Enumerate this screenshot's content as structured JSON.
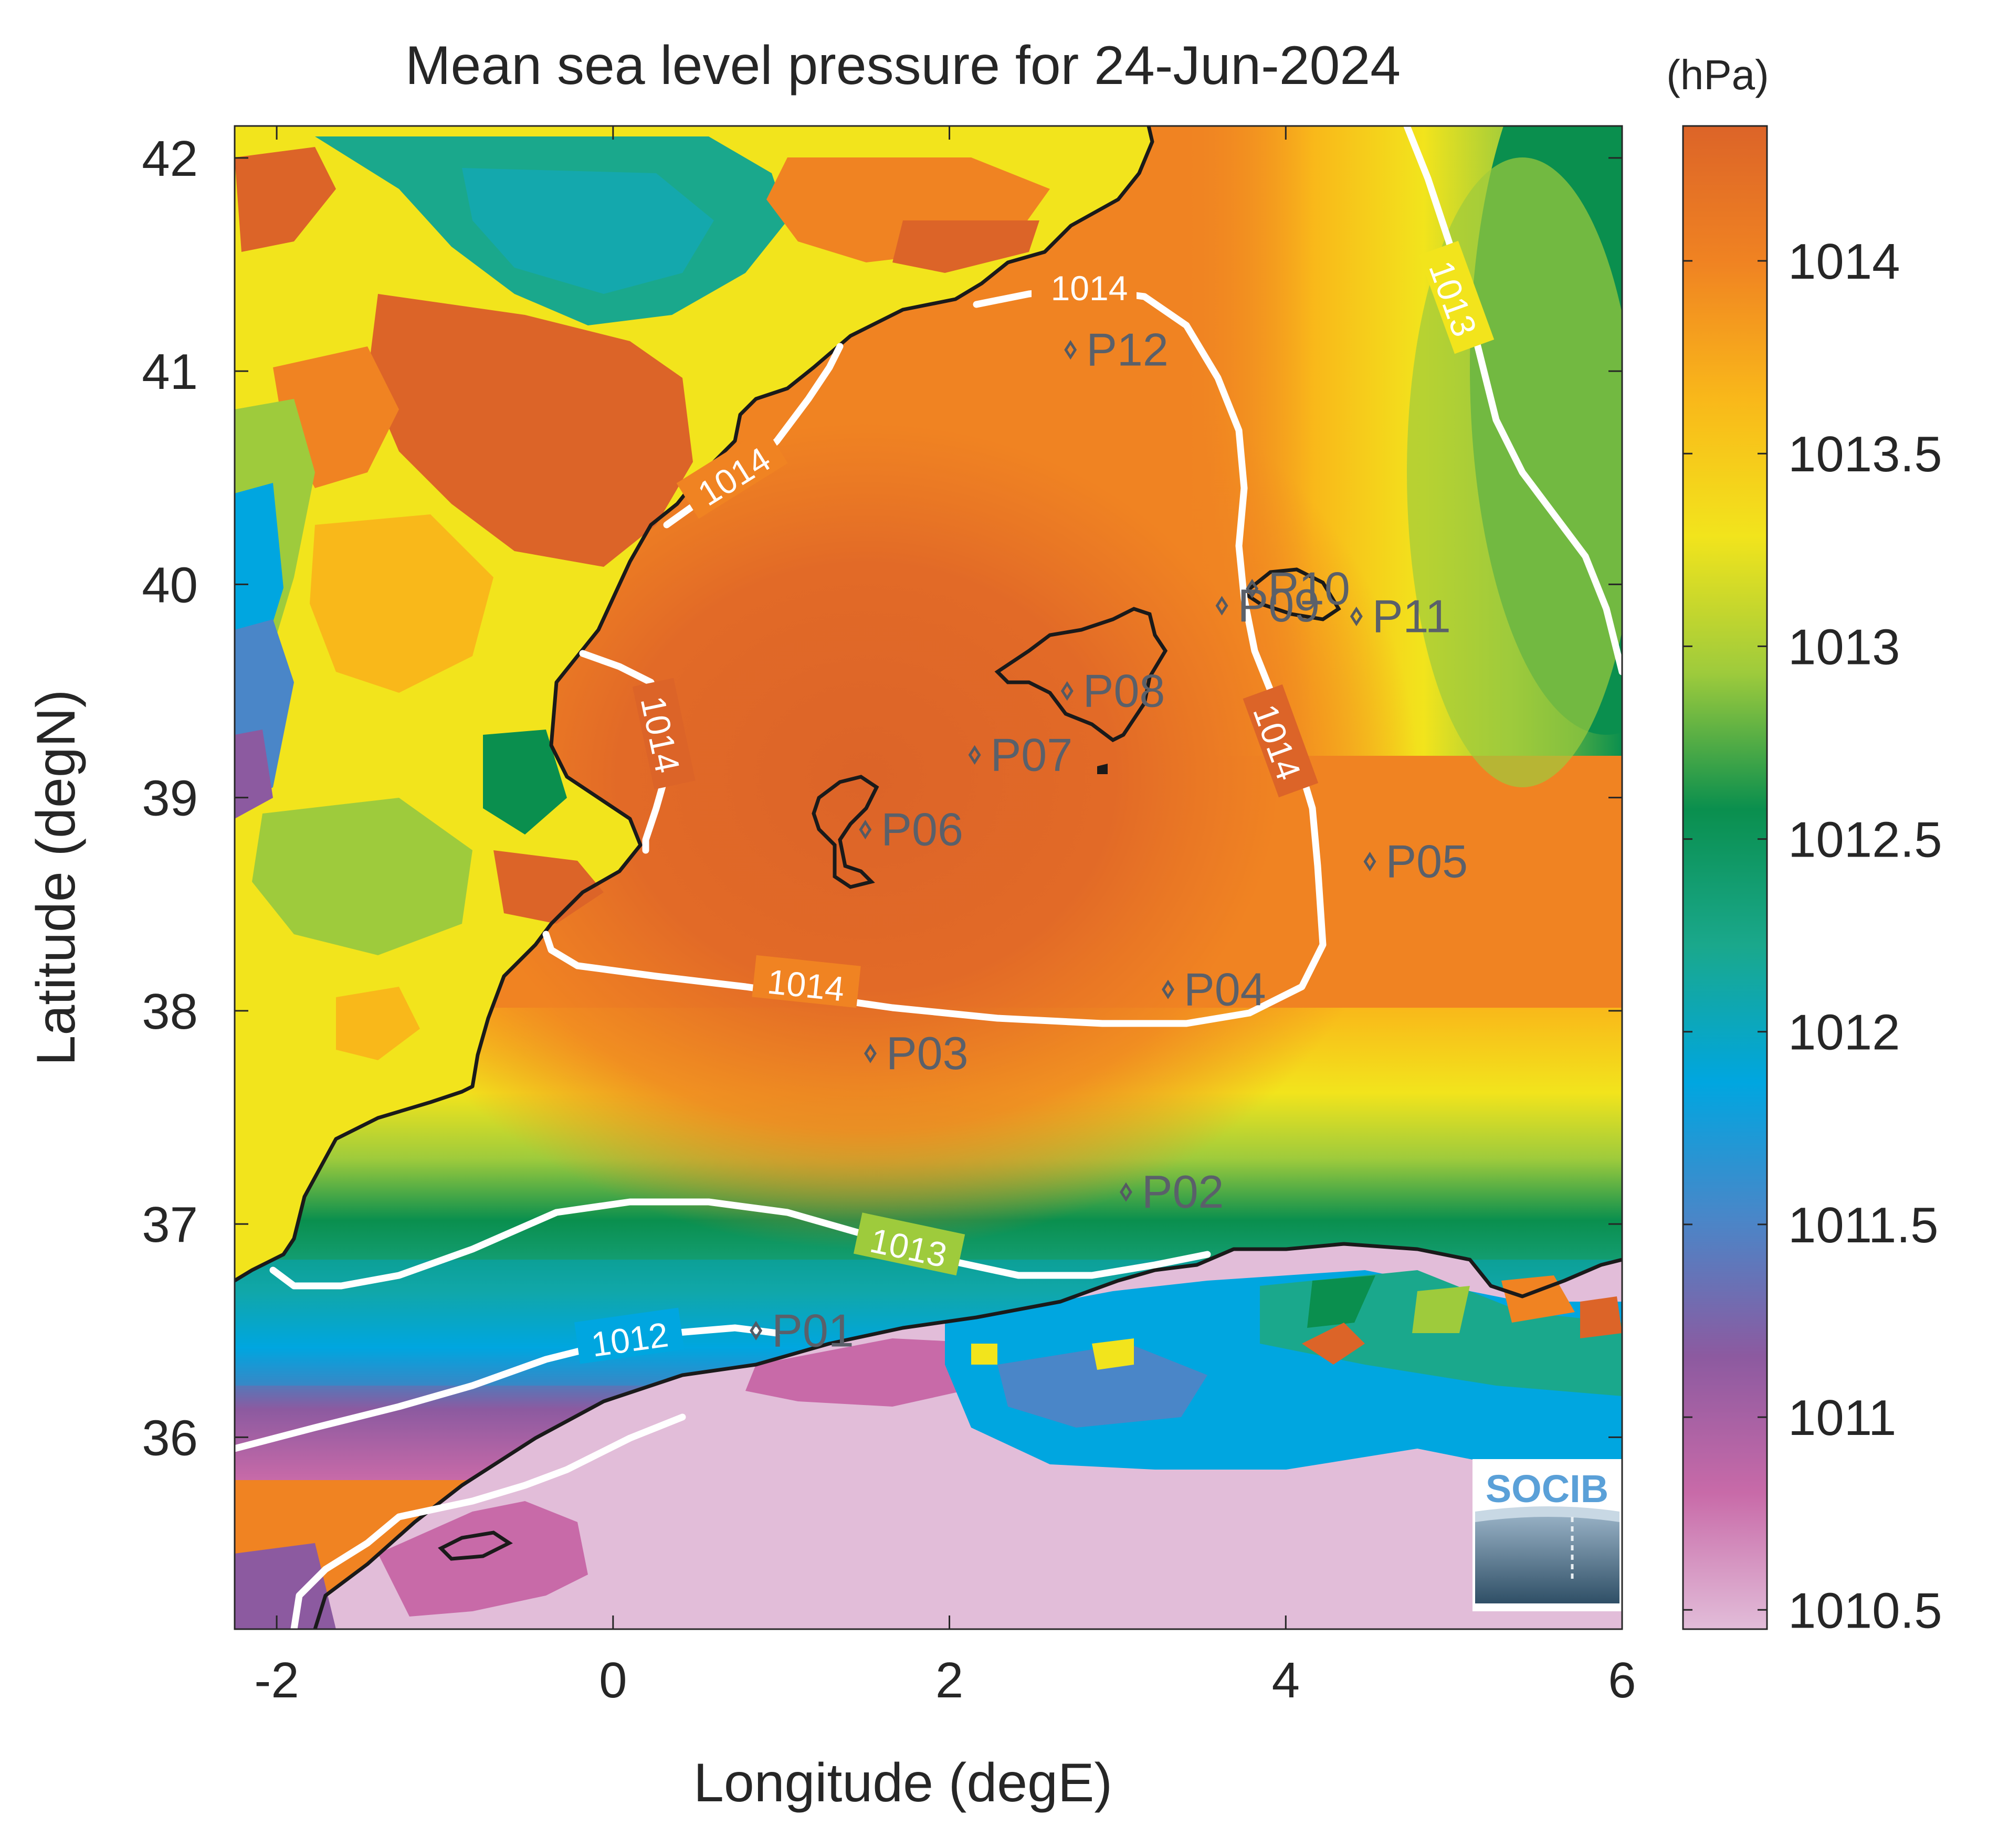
{
  "title": "Mean sea level pressure for 24-Jun-2024",
  "colorbar": {
    "units": "(hPa)",
    "min": 1010.45,
    "max": 1014.35,
    "ticks": [
      "1010.5",
      "1011",
      "1011.5",
      "1012",
      "1012.5",
      "1013",
      "1013.5",
      "1014"
    ],
    "tick_values": [
      1010.5,
      1011,
      1011.5,
      1012,
      1012.5,
      1013,
      1013.5,
      1014
    ],
    "colors": [
      "#e2bdd9",
      "#c86aa8",
      "#8c5aa0",
      "#4a86c8",
      "#00a6e0",
      "#1aa88c",
      "#0a8f4e",
      "#9ecb3c",
      "#f2e41c",
      "#f9b81a",
      "#f08322",
      "#dc6428"
    ]
  },
  "axes": {
    "xlabel": "Longitude (degE)",
    "ylabel": "Latitude (degN)",
    "xlim": [
      -2.25,
      6.0
    ],
    "ylim": [
      35.1,
      42.15
    ],
    "xticks": [
      "-2",
      "0",
      "2",
      "4",
      "6"
    ],
    "xtick_values": [
      -2,
      0,
      2,
      4,
      6
    ],
    "yticks": [
      "36",
      "37",
      "38",
      "39",
      "40",
      "41",
      "42"
    ],
    "ytick_values": [
      36,
      37,
      38,
      39,
      40,
      41,
      42
    ]
  },
  "contour_labels": [
    "1014",
    "1014",
    "1014",
    "1014",
    "1014",
    "1013",
    "1013",
    "1012"
  ],
  "stations": [
    {
      "id": "P01",
      "lon": 0.85,
      "lat": 36.5
    },
    {
      "id": "P02",
      "lon": 3.05,
      "lat": 37.15
    },
    {
      "id": "P03",
      "lon": 1.53,
      "lat": 37.8
    },
    {
      "id": "P04",
      "lon": 3.3,
      "lat": 38.1
    },
    {
      "id": "P05",
      "lon": 4.5,
      "lat": 38.7
    },
    {
      "id": "P06",
      "lon": 1.5,
      "lat": 38.85
    },
    {
      "id": "P07",
      "lon": 2.15,
      "lat": 39.2
    },
    {
      "id": "P08",
      "lon": 2.7,
      "lat": 39.5
    },
    {
      "id": "P09",
      "lon": 3.62,
      "lat": 39.9
    },
    {
      "id": "P10",
      "lon": 3.8,
      "lat": 39.98
    },
    {
      "id": "P11",
      "lon": 4.42,
      "lat": 39.85
    },
    {
      "id": "P12",
      "lon": 2.72,
      "lat": 41.1
    }
  ],
  "logo_text": "SOCIB"
}
